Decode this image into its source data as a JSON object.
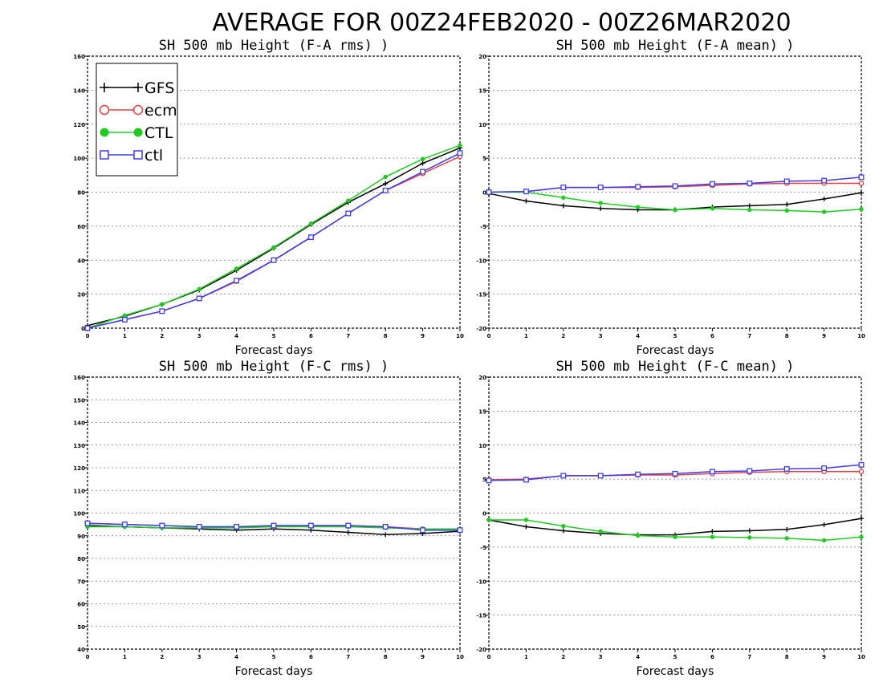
{
  "figure_title": "AVERAGE FOR 00Z24FEB2020 - 00Z26MAR2020",
  "chart_data": [
    {
      "type": "line",
      "title": "SH 500 mb Height (F-A rms) )",
      "xlabel": "Forecast days",
      "ylabel": "",
      "x": [
        0,
        1,
        2,
        3,
        4,
        5,
        6,
        7,
        8,
        9,
        10
      ],
      "xlim": [
        0,
        10
      ],
      "ylim": [
        0,
        160
      ],
      "yticks": [
        0,
        20,
        40,
        60,
        80,
        100,
        120,
        140,
        160
      ],
      "grid": true,
      "legend": {
        "placement": "top-left"
      },
      "series": [
        {
          "name": "GFS",
          "color": "#000000",
          "marker": "plus",
          "values": [
            1.5,
            7,
            14,
            22.5,
            34,
            47,
            61,
            74,
            85,
            97,
            106
          ]
        },
        {
          "name": "ecm",
          "color": "#f03c3c",
          "marker": "open-circle",
          "values": [
            0,
            5,
            10,
            17.5,
            27.5,
            40,
            53.5,
            67.5,
            81,
            91,
            101
          ]
        },
        {
          "name": "CTL",
          "color": "#1ecc1e",
          "marker": "filled-circle",
          "values": [
            0,
            7.5,
            14,
            23,
            35,
            47.5,
            61.5,
            75,
            89,
            99.5,
            107.5
          ]
        },
        {
          "name": "ctl",
          "color": "#3c3cf0",
          "marker": "open-square",
          "values": [
            0,
            5,
            10,
            17.5,
            28,
            40,
            53.5,
            67.5,
            81,
            92,
            103
          ]
        }
      ]
    },
    {
      "type": "line",
      "title": "SH 500 mb Height (F-A mean) )",
      "xlabel": "Forecast days",
      "ylabel": "",
      "x": [
        0,
        1,
        2,
        3,
        4,
        5,
        6,
        7,
        8,
        9,
        10
      ],
      "xlim": [
        0,
        10
      ],
      "ylim": [
        -20,
        20
      ],
      "yticks": [
        -20,
        -15,
        -10,
        -5,
        0,
        5,
        10,
        15,
        20
      ],
      "grid": true,
      "series": [
        {
          "name": "GFS",
          "color": "#000000",
          "marker": "plus",
          "values": [
            -0.2,
            -1.3,
            -2,
            -2.4,
            -2.6,
            -2.6,
            -2.2,
            -2,
            -1.8,
            -1,
            -0.1
          ]
        },
        {
          "name": "ecm",
          "color": "#f03c3c",
          "marker": "open-circle",
          "values": [
            0,
            0.1,
            0.7,
            0.7,
            0.7,
            0.8,
            1,
            1.2,
            1.3,
            1.3,
            1.3
          ]
        },
        {
          "name": "CTL",
          "color": "#1ecc1e",
          "marker": "filled-circle",
          "values": [
            0,
            0,
            -0.8,
            -1.6,
            -2.2,
            -2.6,
            -2.4,
            -2.6,
            -2.7,
            -2.9,
            -2.5
          ]
        },
        {
          "name": "ctl",
          "color": "#3c3cf0",
          "marker": "open-square",
          "values": [
            0,
            0.1,
            0.7,
            0.7,
            0.8,
            0.9,
            1.2,
            1.3,
            1.6,
            1.7,
            2.2
          ]
        }
      ]
    },
    {
      "type": "line",
      "title": "SH 500 mb Height (F-C rms) )",
      "xlabel": "Forecast days",
      "ylabel": "",
      "x": [
        0,
        1,
        2,
        3,
        4,
        5,
        6,
        7,
        8,
        9,
        10
      ],
      "xlim": [
        0,
        10
      ],
      "ylim": [
        40,
        160
      ],
      "yticks": [
        40,
        50,
        60,
        70,
        80,
        90,
        100,
        110,
        120,
        130,
        140,
        150,
        160
      ],
      "grid": true,
      "series": [
        {
          "name": "GFS",
          "color": "#000000",
          "marker": "plus",
          "values": [
            94.5,
            94,
            93.5,
            93,
            92.5,
            93,
            92.5,
            91.5,
            90.5,
            91,
            92
          ]
        },
        {
          "name": "ecm",
          "color": "#f03c3c",
          "marker": "open-circle",
          "values": [
            95.5,
            95,
            94.5,
            94,
            94,
            94,
            94.5,
            94.5,
            94,
            93,
            92.5
          ]
        },
        {
          "name": "CTL",
          "color": "#1ecc1e",
          "marker": "filled-circle",
          "values": [
            94,
            94,
            93.5,
            93.5,
            93.5,
            94,
            94,
            94,
            93.5,
            93,
            93
          ]
        },
        {
          "name": "ctl",
          "color": "#3c3cf0",
          "marker": "open-square",
          "values": [
            95.5,
            95,
            94.5,
            94,
            94,
            94.5,
            94.5,
            94.5,
            94,
            92.5,
            92.5
          ]
        }
      ]
    },
    {
      "type": "line",
      "title": "SH 500 mb Height (F-C mean) )",
      "xlabel": "Forecast days",
      "ylabel": "",
      "x": [
        0,
        1,
        2,
        3,
        4,
        5,
        6,
        7,
        8,
        9,
        10
      ],
      "xlim": [
        0,
        10
      ],
      "ylim": [
        -20,
        20
      ],
      "yticks": [
        -20,
        -15,
        -10,
        -5,
        0,
        5,
        10,
        15,
        20
      ],
      "grid": true,
      "series": [
        {
          "name": "GFS",
          "color": "#000000",
          "marker": "plus",
          "values": [
            -1,
            -2,
            -2.6,
            -3,
            -3.2,
            -3.2,
            -2.7,
            -2.6,
            -2.4,
            -1.7,
            -0.8
          ]
        },
        {
          "name": "ecm",
          "color": "#f03c3c",
          "marker": "open-circle",
          "values": [
            4.9,
            5,
            5.5,
            5.5,
            5.6,
            5.6,
            5.8,
            6,
            6.1,
            6.1,
            6.1
          ]
        },
        {
          "name": "CTL",
          "color": "#1ecc1e",
          "marker": "filled-circle",
          "values": [
            -1,
            -1,
            -1.9,
            -2.7,
            -3.3,
            -3.5,
            -3.5,
            -3.6,
            -3.7,
            -4,
            -3.5
          ]
        },
        {
          "name": "ctl",
          "color": "#3c3cf0",
          "marker": "open-square",
          "values": [
            4.8,
            4.9,
            5.5,
            5.5,
            5.7,
            5.8,
            6.1,
            6.2,
            6.5,
            6.6,
            7.1
          ]
        }
      ]
    }
  ]
}
